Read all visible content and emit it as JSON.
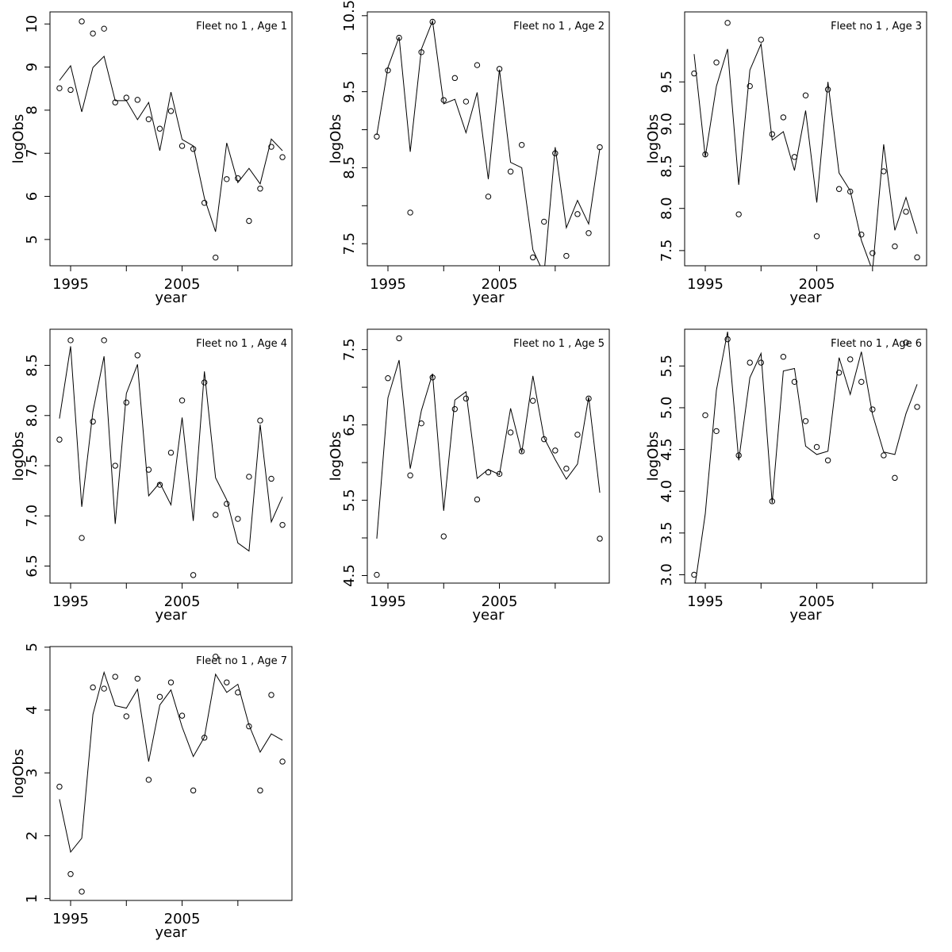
{
  "chart_data": [
    {
      "type": "line",
      "title": "Fleet no 1 , Age 1",
      "xlabel": "year",
      "ylabel": "logObs",
      "x": [
        1994,
        1995,
        1996,
        1997,
        1998,
        1999,
        2000,
        2001,
        2002,
        2003,
        2004,
        2005,
        2006,
        2007,
        2008,
        2009,
        2010,
        2011,
        2012,
        2013,
        2014
      ],
      "series": [
        {
          "mark": "point",
          "color": "#000000",
          "values": [
            8.51,
            8.47,
            10.06,
            9.78,
            9.89,
            8.18,
            8.29,
            8.24,
            7.79,
            7.57,
            7.98,
            7.17,
            7.1,
            5.85,
            4.58,
            6.4,
            6.42,
            5.43,
            6.18,
            7.15,
            6.91
          ]
        },
        {
          "mark": "line",
          "color": "#000000",
          "values": [
            8.69,
            9.03,
            7.96,
            8.99,
            9.25,
            8.22,
            8.22,
            7.78,
            8.18,
            7.06,
            8.42,
            7.32,
            7.17,
            5.96,
            5.18,
            7.24,
            6.32,
            6.65,
            6.29,
            7.33,
            7.06
          ]
        }
      ],
      "xlim": [
        1993.15,
        2014.85
      ],
      "xticks": [
        1995,
        2005
      ],
      "xticks_minor": [
        2000,
        2010
      ],
      "ylim": [
        4.39,
        10.28
      ],
      "yticks": [
        5,
        6,
        7,
        8,
        9,
        10
      ],
      "yticks_minor": []
    },
    {
      "type": "line",
      "title": "Fleet no 1 , Age 2",
      "xlabel": "year",
      "ylabel": "logObs",
      "x": [
        1994,
        1995,
        1996,
        1997,
        1998,
        1999,
        2000,
        2001,
        2002,
        2003,
        2004,
        2005,
        2006,
        2007,
        2008,
        2009,
        2010,
        2011,
        2012,
        2013,
        2014
      ],
      "series": [
        {
          "mark": "point",
          "color": "#000000",
          "values": [
            8.91,
            9.78,
            10.21,
            7.91,
            10.02,
            10.42,
            9.39,
            9.68,
            9.37,
            9.85,
            8.12,
            9.8,
            8.45,
            8.8,
            7.32,
            7.79,
            8.69,
            7.34,
            7.89,
            7.64,
            8.77
          ]
        },
        {
          "mark": "line",
          "color": "#000000",
          "values": [
            8.93,
            9.82,
            10.22,
            8.71,
            10.06,
            10.43,
            9.34,
            9.4,
            8.96,
            9.49,
            8.35,
            9.79,
            8.57,
            8.5,
            7.42,
            7.1,
            8.77,
            7.71,
            8.07,
            7.76,
            8.75
          ]
        }
      ],
      "xlim": [
        1993.15,
        2014.85
      ],
      "xticks": [
        1995,
        2005
      ],
      "xticks_minor": [
        2000,
        2010
      ],
      "ylim": [
        7.21,
        10.55
      ],
      "yticks": [
        7.5,
        8.5,
        9.5,
        10.5
      ],
      "yticks_minor": [
        8,
        9,
        10
      ]
    },
    {
      "type": "line",
      "title": "Fleet no 1 , Age 3",
      "xlabel": "year",
      "ylabel": "logObs",
      "x": [
        1994,
        1995,
        1996,
        1997,
        1998,
        1999,
        2000,
        2001,
        2002,
        2003,
        2004,
        2005,
        2006,
        2007,
        2008,
        2009,
        2010,
        2011,
        2012,
        2013,
        2014
      ],
      "series": [
        {
          "mark": "point",
          "color": "#000000",
          "values": [
            9.6,
            8.64,
            9.73,
            10.2,
            7.93,
            9.45,
            10.0,
            8.88,
            9.08,
            8.61,
            9.34,
            7.67,
            9.41,
            8.23,
            8.2,
            7.69,
            7.47,
            8.44,
            7.55,
            7.96,
            7.42
          ]
        },
        {
          "mark": "line",
          "color": "#000000",
          "values": [
            9.83,
            8.61,
            9.45,
            9.89,
            8.28,
            9.64,
            9.95,
            8.81,
            8.91,
            8.45,
            9.16,
            8.07,
            9.5,
            8.42,
            8.21,
            7.62,
            7.26,
            8.76,
            7.74,
            8.13,
            7.7
          ]
        }
      ],
      "xlim": [
        1993.15,
        2014.85
      ],
      "xticks": [
        1995,
        2005
      ],
      "xticks_minor": [
        2000,
        2010
      ],
      "ylim": [
        7.32,
        10.33
      ],
      "yticks": [
        7.5,
        {
          "value": 8,
          "label": "8.0"
        },
        8.5,
        {
          "value": 9,
          "label": "9.0"
        },
        9.5
      ],
      "yticks_minor": []
    },
    {
      "type": "line",
      "title": "Fleet no 1 , Age 4",
      "xlabel": "year",
      "ylabel": "logObs",
      "x": [
        1994,
        1995,
        1996,
        1997,
        1998,
        1999,
        2000,
        2001,
        2002,
        2003,
        2004,
        2005,
        2006,
        2007,
        2008,
        2009,
        2010,
        2011,
        2012,
        2013,
        2014
      ],
      "series": [
        {
          "mark": "point",
          "color": "#000000",
          "values": [
            7.76,
            8.75,
            6.78,
            7.94,
            8.75,
            7.5,
            8.13,
            8.6,
            7.46,
            7.31,
            7.63,
            8.15,
            6.41,
            8.33,
            7.01,
            7.12,
            6.97,
            7.39,
            7.95,
            7.37,
            6.91
          ]
        },
        {
          "mark": "line",
          "color": "#000000",
          "values": [
            7.97,
            8.69,
            7.09,
            8.04,
            8.59,
            6.92,
            8.22,
            8.51,
            7.2,
            7.33,
            7.11,
            7.98,
            6.95,
            8.44,
            7.38,
            7.16,
            6.73,
            6.65,
            7.91,
            6.94,
            7.19
          ]
        }
      ],
      "xlim": [
        1993.15,
        2014.85
      ],
      "xticks": [
        1995,
        2005
      ],
      "xticks_minor": [
        2000,
        2010
      ],
      "ylim": [
        6.33,
        8.86
      ],
      "yticks": [
        6.5,
        {
          "value": 7,
          "label": "7.0"
        },
        7.5,
        {
          "value": 8,
          "label": "8.0"
        },
        8.5
      ],
      "yticks_minor": []
    },
    {
      "type": "line",
      "title": "Fleet no 1 , Age 5",
      "xlabel": "year",
      "ylabel": "logObs",
      "x": [
        1994,
        1995,
        1996,
        1997,
        1998,
        1999,
        2000,
        2001,
        2002,
        2003,
        2004,
        2005,
        2006,
        2007,
        2008,
        2009,
        2010,
        2011,
        2012,
        2013,
        2014
      ],
      "series": [
        {
          "mark": "point",
          "color": "#000000",
          "values": [
            4.51,
            7.12,
            7.65,
            5.83,
            6.52,
            7.13,
            5.02,
            6.71,
            6.85,
            5.51,
            5.87,
            5.85,
            6.4,
            6.15,
            6.82,
            6.31,
            6.16,
            5.92,
            6.37,
            6.85,
            4.99
          ]
        },
        {
          "mark": "line",
          "color": "#000000",
          "values": [
            4.99,
            6.86,
            7.36,
            5.92,
            6.69,
            7.18,
            5.36,
            6.83,
            6.94,
            5.79,
            5.91,
            5.84,
            6.72,
            6.13,
            7.15,
            6.33,
            6.04,
            5.78,
            5.98,
            6.87,
            5.6
          ]
        }
      ],
      "xlim": [
        1993.15,
        2014.85
      ],
      "xticks": [
        1995,
        2005
      ],
      "xticks_minor": [
        2000,
        2010
      ],
      "ylim": [
        4.4,
        7.77
      ],
      "yticks": [
        4.5,
        5.5,
        6.5,
        7.5
      ],
      "yticks_minor": [
        5,
        6,
        7
      ]
    },
    {
      "type": "line",
      "title": "Fleet no 1 , Age 6",
      "xlabel": "year",
      "ylabel": "logObs",
      "x": [
        1994,
        1995,
        1996,
        1997,
        1998,
        1999,
        2000,
        2001,
        2002,
        2003,
        2004,
        2005,
        2006,
        2007,
        2008,
        2009,
        2010,
        2011,
        2012,
        2013,
        2014
      ],
      "series": [
        {
          "mark": "point",
          "color": "#000000",
          "values": [
            3.0,
            4.91,
            4.72,
            5.82,
            4.43,
            5.54,
            5.54,
            3.88,
            5.61,
            5.31,
            4.84,
            4.53,
            4.37,
            5.42,
            5.58,
            5.31,
            4.98,
            4.43,
            4.16,
            5.78,
            5.01
          ]
        },
        {
          "mark": "line",
          "color": "#000000",
          "values": [
            2.8,
            3.73,
            5.21,
            5.91,
            4.37,
            5.36,
            5.65,
            3.86,
            5.44,
            5.47,
            4.54,
            4.44,
            4.48,
            5.6,
            5.16,
            5.67,
            4.92,
            4.47,
            4.44,
            4.93,
            5.28
          ]
        }
      ],
      "xlim": [
        1993.15,
        2014.85
      ],
      "xticks": [
        1995,
        2005
      ],
      "xticks_minor": [
        2000,
        2010
      ],
      "ylim": [
        2.9,
        5.94
      ],
      "yticks": [
        {
          "value": 3,
          "label": "3.0"
        },
        3.5,
        {
          "value": 4,
          "label": "4.0"
        },
        4.5,
        {
          "value": 5,
          "label": "5.0"
        },
        5.5
      ],
      "yticks_minor": []
    },
    {
      "type": "line",
      "title": "Fleet no 1 , Age 7",
      "xlabel": "year",
      "ylabel": "logObs",
      "x": [
        1994,
        1995,
        1996,
        1997,
        1998,
        1999,
        2000,
        2001,
        2002,
        2003,
        2004,
        2005,
        2006,
        2007,
        2008,
        2009,
        2010,
        2011,
        2012,
        2013,
        2014
      ],
      "series": [
        {
          "mark": "point",
          "color": "#000000",
          "values": [
            2.78,
            1.39,
            1.11,
            4.36,
            4.34,
            4.53,
            3.9,
            4.5,
            2.89,
            4.21,
            4.44,
            3.91,
            2.72,
            3.56,
            4.85,
            4.44,
            4.28,
            3.74,
            2.72,
            4.24,
            3.18
          ]
        },
        {
          "mark": "line",
          "color": "#000000",
          "values": [
            2.58,
            1.74,
            1.96,
            3.93,
            4.6,
            4.07,
            4.03,
            4.33,
            3.18,
            4.08,
            4.32,
            3.73,
            3.26,
            3.57,
            4.57,
            4.28,
            4.41,
            3.76,
            3.33,
            3.62,
            3.52
          ]
        }
      ],
      "xlim": [
        1993.15,
        2014.85
      ],
      "xticks": [
        1995,
        2005
      ],
      "xticks_minor": [
        2000,
        2010
      ],
      "ylim": [
        0.97,
        5.01
      ],
      "yticks": [
        1,
        2,
        3,
        4,
        5
      ],
      "yticks_minor": []
    }
  ]
}
